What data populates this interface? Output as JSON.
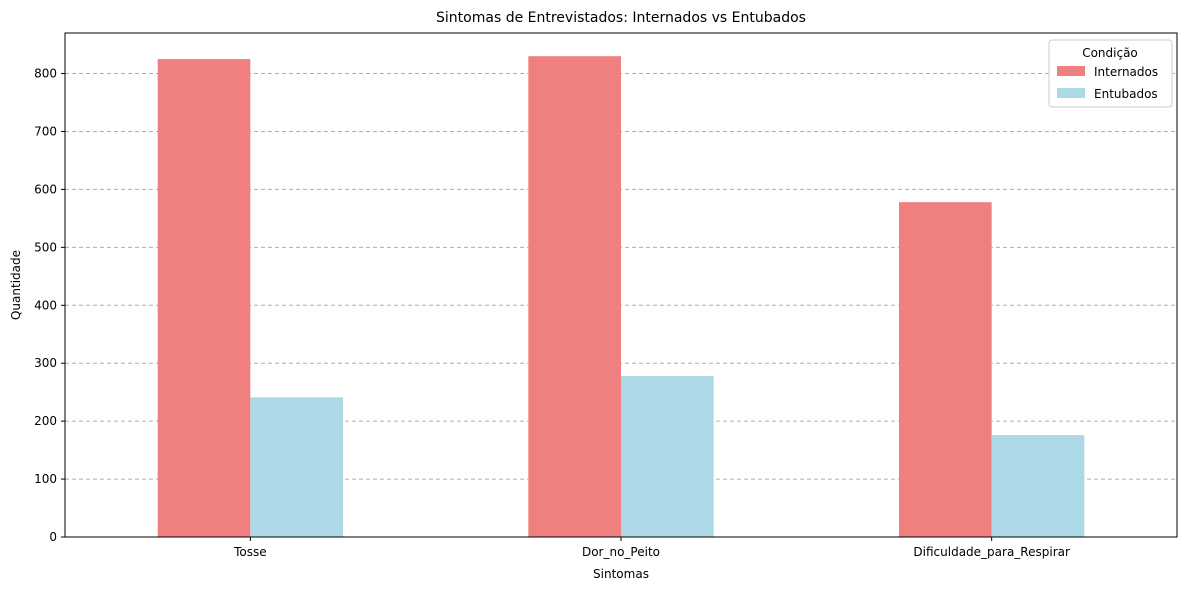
{
  "chart_data": {
    "type": "bar",
    "title": "Sintomas de Entrevistados: Internados vs Entubados",
    "xlabel": "Sintomas",
    "ylabel": "Quantidade",
    "categories": [
      "Tosse",
      "Dor_no_Peito",
      "Dificuldade_para_Respirar"
    ],
    "series": [
      {
        "name": "Internados",
        "values": [
          825,
          830,
          578
        ],
        "color": "#f08080"
      },
      {
        "name": "Entubados",
        "values": [
          241,
          278,
          176
        ],
        "color": "#add8e6"
      }
    ],
    "ylim": [
      0,
      870
    ],
    "yticks": [
      0,
      100,
      200,
      300,
      400,
      500,
      600,
      700,
      800
    ],
    "grid": "y-dashed",
    "legend": {
      "title": "Condição",
      "placement": "top-right"
    }
  }
}
